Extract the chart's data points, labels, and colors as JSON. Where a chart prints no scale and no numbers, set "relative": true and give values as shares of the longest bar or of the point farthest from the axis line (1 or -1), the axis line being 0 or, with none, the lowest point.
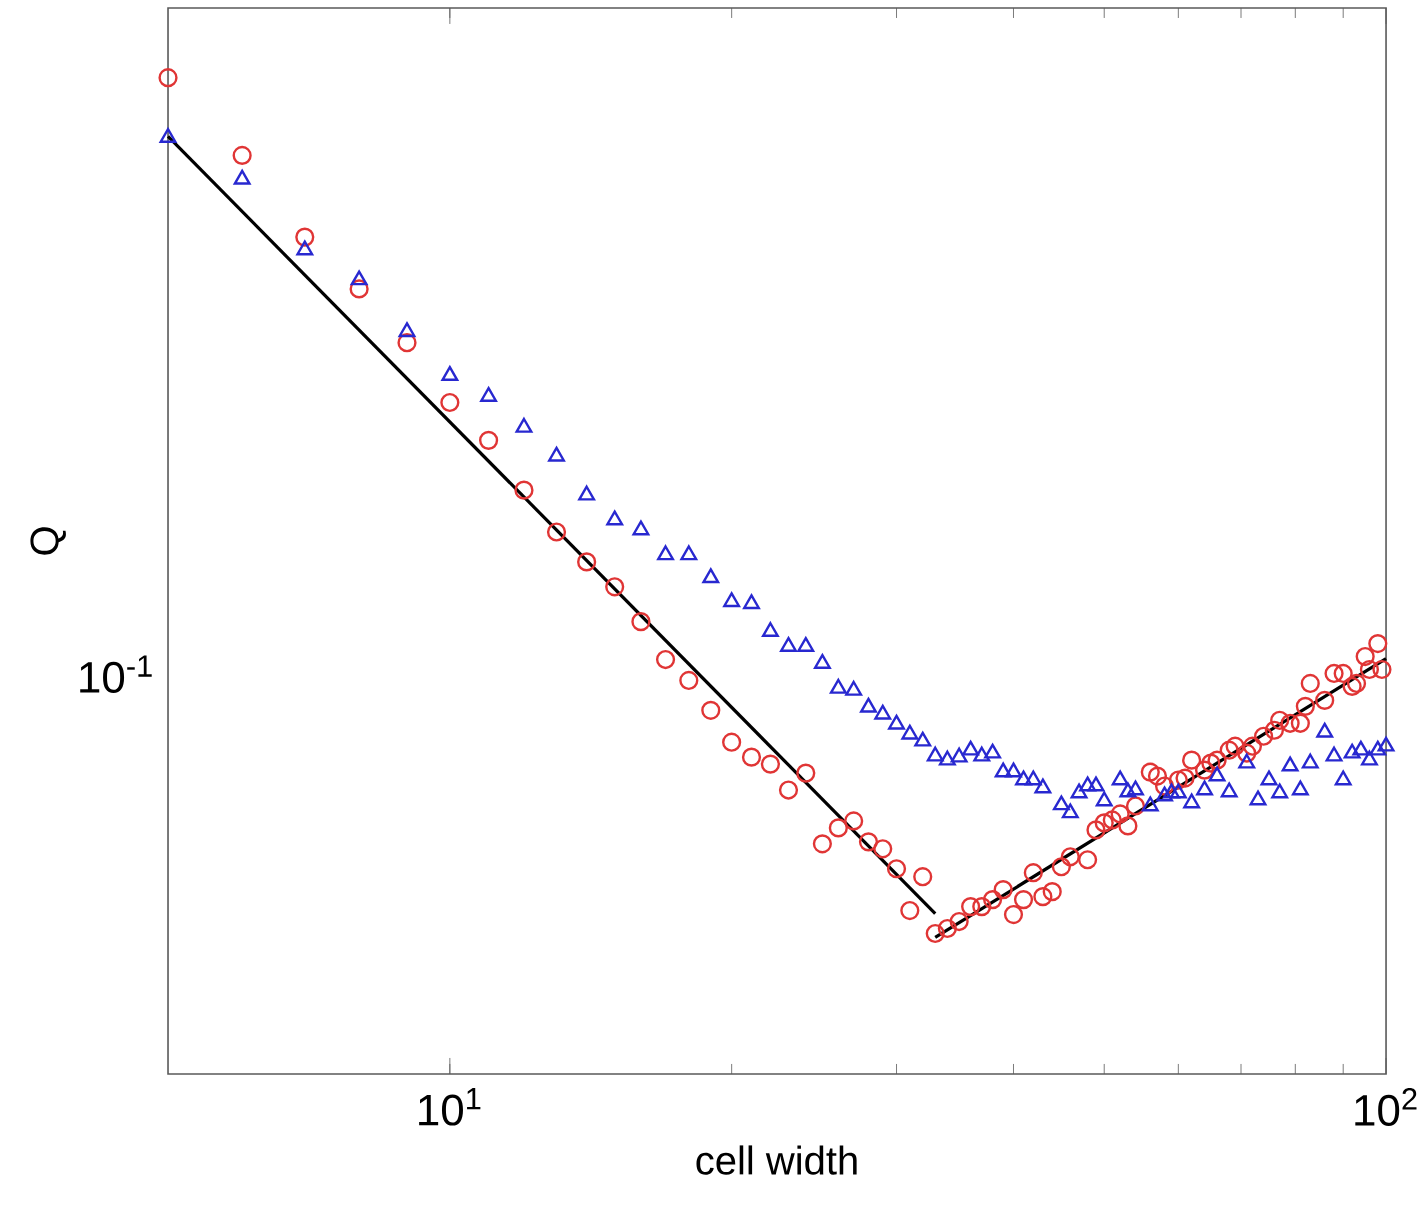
{
  "chart_data": {
    "type": "scatter",
    "xlabel": "cell width",
    "ylabel": "Q",
    "log": "x",
    "relative": true,
    "xlim": [
      5,
      100
    ],
    "xticks": [
      {
        "value": 10,
        "label": "10$^{1}$"
      },
      {
        "value": 100,
        "label": "10$^{2}$"
      }
    ],
    "annotations": [
      "10$^{-1}$"
    ],
    "series": [
      {
        "marker": "circle",
        "color": "#e03535",
        "x": [
          5,
          6,
          7,
          8,
          9,
          10,
          11,
          12,
          13,
          14,
          15,
          16,
          17,
          18,
          19,
          20,
          21,
          22,
          23,
          24,
          25,
          26,
          27,
          28,
          29,
          30,
          31,
          32,
          33,
          34,
          35,
          36,
          37,
          38,
          39,
          40,
          41,
          42,
          43,
          44,
          45,
          46,
          48,
          49,
          50,
          51,
          52,
          53,
          54,
          56,
          57,
          58,
          60,
          61,
          62,
          64,
          65,
          66,
          68,
          69,
          71,
          72,
          74,
          76,
          77,
          79,
          81,
          82,
          83,
          86,
          88,
          90,
          92,
          93,
          95,
          96,
          98,
          99
        ],
        "values": [
          1,
          0.922,
          0.84,
          0.788,
          0.734,
          0.674,
          0.636,
          0.586,
          0.544,
          0.514,
          0.489,
          0.454,
          0.416,
          0.395,
          0.365,
          0.333,
          0.318,
          0.311,
          0.285,
          0.302,
          0.231,
          0.247,
          0.254,
          0.233,
          0.226,
          0.206,
          0.164,
          0.198,
          0.141,
          0.146,
          0.153,
          0.168,
          0.168,
          0.175,
          0.185,
          0.16,
          0.175,
          0.202,
          0.178,
          0.183,
          0.208,
          0.218,
          0.215,
          0.245,
          0.252,
          0.255,
          0.261,
          0.249,
          0.269,
          0.303,
          0.299,
          0.289,
          0.295,
          0.297,
          0.315,
          0.305,
          0.312,
          0.315,
          0.325,
          0.329,
          0.322,
          0.329,
          0.339,
          0.345,
          0.355,
          0.352,
          0.352,
          0.369,
          0.392,
          0.375,
          0.402,
          0.402,
          0.389,
          0.392,
          0.419,
          0.406,
          0.432,
          0.406
        ]
      },
      {
        "marker": "triangle",
        "color": "#2828d0",
        "x": [
          5,
          6,
          7,
          8,
          9,
          10,
          11,
          12,
          13,
          14,
          15,
          16,
          17,
          18,
          19,
          20,
          21,
          22,
          23,
          24,
          25,
          26,
          27,
          28,
          29,
          30,
          31,
          32,
          33,
          34,
          35,
          36,
          37,
          38,
          39,
          40,
          41,
          42,
          43,
          45,
          46,
          47,
          48,
          49,
          50,
          52,
          53,
          54,
          56,
          58,
          59,
          60,
          62,
          64,
          66,
          68,
          71,
          73,
          75,
          77,
          79,
          81,
          83,
          86,
          88,
          90,
          92,
          94,
          96,
          98,
          100
        ],
        "values": [
          0.94,
          0.898,
          0.827,
          0.797,
          0.745,
          0.701,
          0.68,
          0.649,
          0.62,
          0.581,
          0.556,
          0.546,
          0.521,
          0.521,
          0.498,
          0.474,
          0.472,
          0.444,
          0.429,
          0.429,
          0.412,
          0.387,
          0.385,
          0.368,
          0.361,
          0.351,
          0.341,
          0.334,
          0.319,
          0.315,
          0.318,
          0.325,
          0.319,
          0.322,
          0.303,
          0.303,
          0.295,
          0.295,
          0.287,
          0.27,
          0.262,
          0.282,
          0.289,
          0.289,
          0.274,
          0.295,
          0.283,
          0.285,
          0.269,
          0.279,
          0.282,
          0.282,
          0.272,
          0.285,
          0.299,
          0.283,
          0.312,
          0.275,
          0.295,
          0.282,
          0.309,
          0.285,
          0.312,
          0.343,
          0.319,
          0.295,
          0.322,
          0.325,
          0.315,
          0.325,
          0.329
        ]
      },
      {
        "type": "line",
        "marker": "none",
        "line_style": "solid",
        "color": "#000000",
        "x": [
          5,
          33
        ],
        "values": [
          0.941,
          0.161
        ]
      },
      {
        "type": "line",
        "marker": "none",
        "line_style": "solid",
        "color": "#000000",
        "x": [
          33,
          100
        ],
        "values": [
          0.137,
          0.417
        ]
      }
    ]
  }
}
